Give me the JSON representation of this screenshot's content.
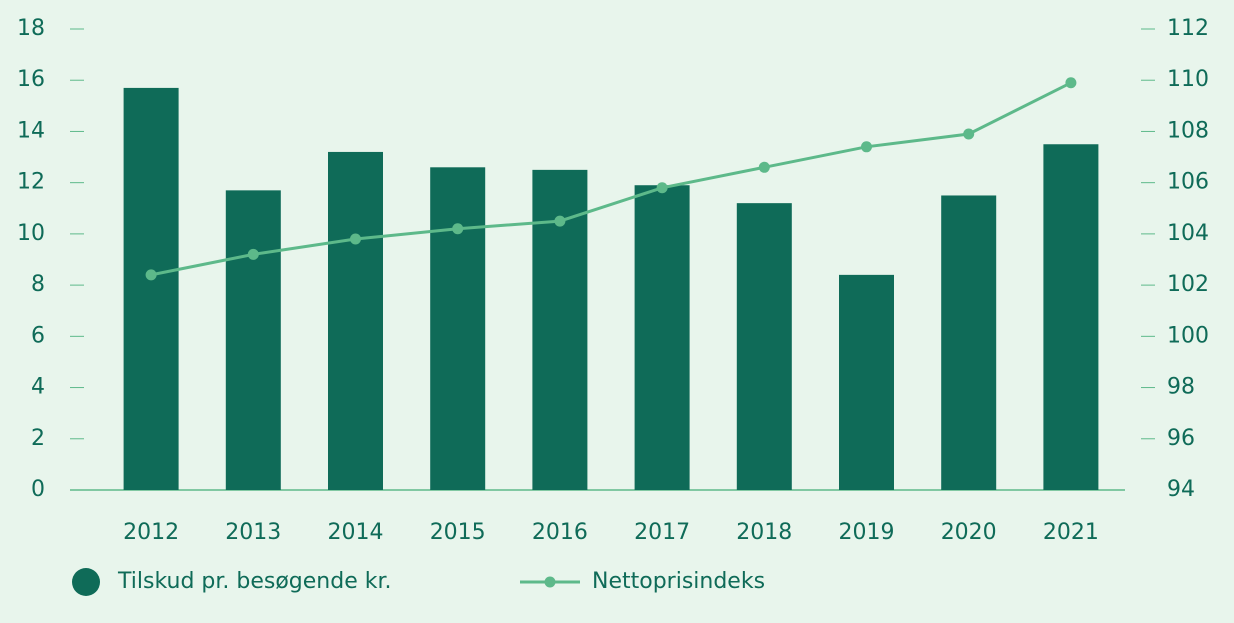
{
  "chart_data": {
    "type": "bar_line",
    "categories": [
      "2012",
      "2013",
      "2014",
      "2015",
      "2016",
      "2017",
      "2018",
      "2019",
      "2020",
      "2021"
    ],
    "series": [
      {
        "name": "Tilskud pr. besøgende kr.",
        "type": "bar",
        "color": "#0f6b58",
        "values": [
          15.7,
          11.7,
          13.2,
          12.6,
          12.5,
          11.9,
          11.2,
          8.4,
          11.5,
          13.5
        ]
      },
      {
        "name": "Nettoprisindeks",
        "type": "line",
        "axis": "y2",
        "color": "#5db98a",
        "values": [
          102.4,
          103.2,
          103.8,
          104.2,
          104.5,
          105.8,
          106.6,
          107.4,
          107.9,
          109.9
        ]
      }
    ],
    "ylim": [
      0,
      18
    ],
    "yticks": [
      0,
      2,
      4,
      6,
      8,
      10,
      12,
      14,
      16,
      18
    ],
    "y2lim": [
      94,
      112
    ],
    "y2ticks": [
      94,
      96,
      98,
      100,
      102,
      104,
      106,
      108,
      110,
      112
    ],
    "legend": "bottom-left"
  }
}
